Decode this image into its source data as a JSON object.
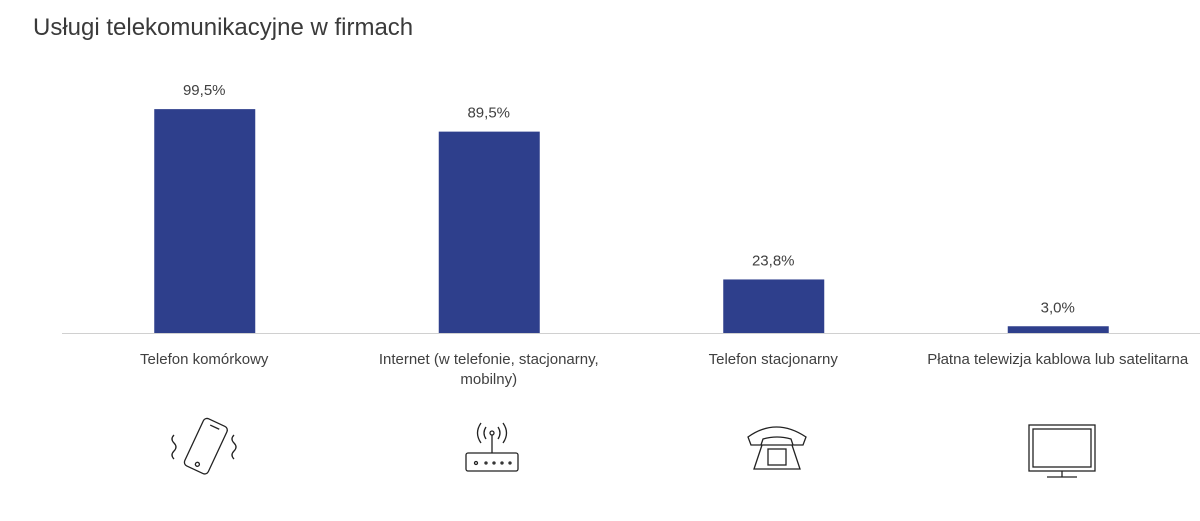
{
  "chart_data": {
    "type": "bar",
    "title": "Usługi telekomunikacyjne w firmach",
    "categories": [
      "Telefon komórkowy",
      "Internet (w telefonie, stacjonarny, mobilny)",
      "Telefon stacjonarny",
      "Płatna telewizja kablowa lub satelitarna"
    ],
    "values": [
      99.5,
      89.5,
      23.8,
      3.0
    ],
    "value_labels": [
      "99,5%",
      "89,5%",
      "23,8%",
      "3,0%"
    ],
    "color": "#2e3f8c",
    "ylim": [
      0,
      100
    ]
  }
}
